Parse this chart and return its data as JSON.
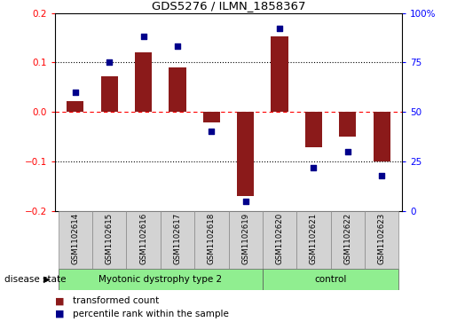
{
  "title": "GDS5276 / ILMN_1858367",
  "samples": [
    "GSM1102614",
    "GSM1102615",
    "GSM1102616",
    "GSM1102617",
    "GSM1102618",
    "GSM1102619",
    "GSM1102620",
    "GSM1102621",
    "GSM1102622",
    "GSM1102623"
  ],
  "transformed_count": [
    0.022,
    0.072,
    0.12,
    0.09,
    -0.022,
    -0.17,
    0.152,
    -0.072,
    -0.05,
    -0.1
  ],
  "percentile_rank": [
    60,
    75,
    88,
    83,
    40,
    5,
    92,
    22,
    30,
    18
  ],
  "bar_color": "#8B1A1A",
  "dot_color": "#00008B",
  "left_ylim": [
    -0.2,
    0.2
  ],
  "right_ylim": [
    0,
    100
  ],
  "left_yticks": [
    -0.2,
    -0.1,
    0.0,
    0.1,
    0.2
  ],
  "right_yticks": [
    0,
    25,
    50,
    75,
    100
  ],
  "hline_dotted": [
    -0.1,
    0.1
  ],
  "hline_red_dashed": 0.0,
  "disease_groups": [
    {
      "label": "Myotonic dystrophy type 2",
      "start": 0,
      "end": 6,
      "color": "#90EE90"
    },
    {
      "label": "control",
      "start": 6,
      "end": 10,
      "color": "#90EE90"
    }
  ],
  "disease_state_label": "disease state",
  "legend_red_label": "transformed count",
  "legend_blue_label": "percentile rank within the sample",
  "bar_width": 0.5,
  "plot_bg_color": "#ffffff",
  "sample_box_color": "#d3d3d3",
  "right_ytick_labels": [
    "0",
    "25",
    "50",
    "75",
    "100%"
  ]
}
